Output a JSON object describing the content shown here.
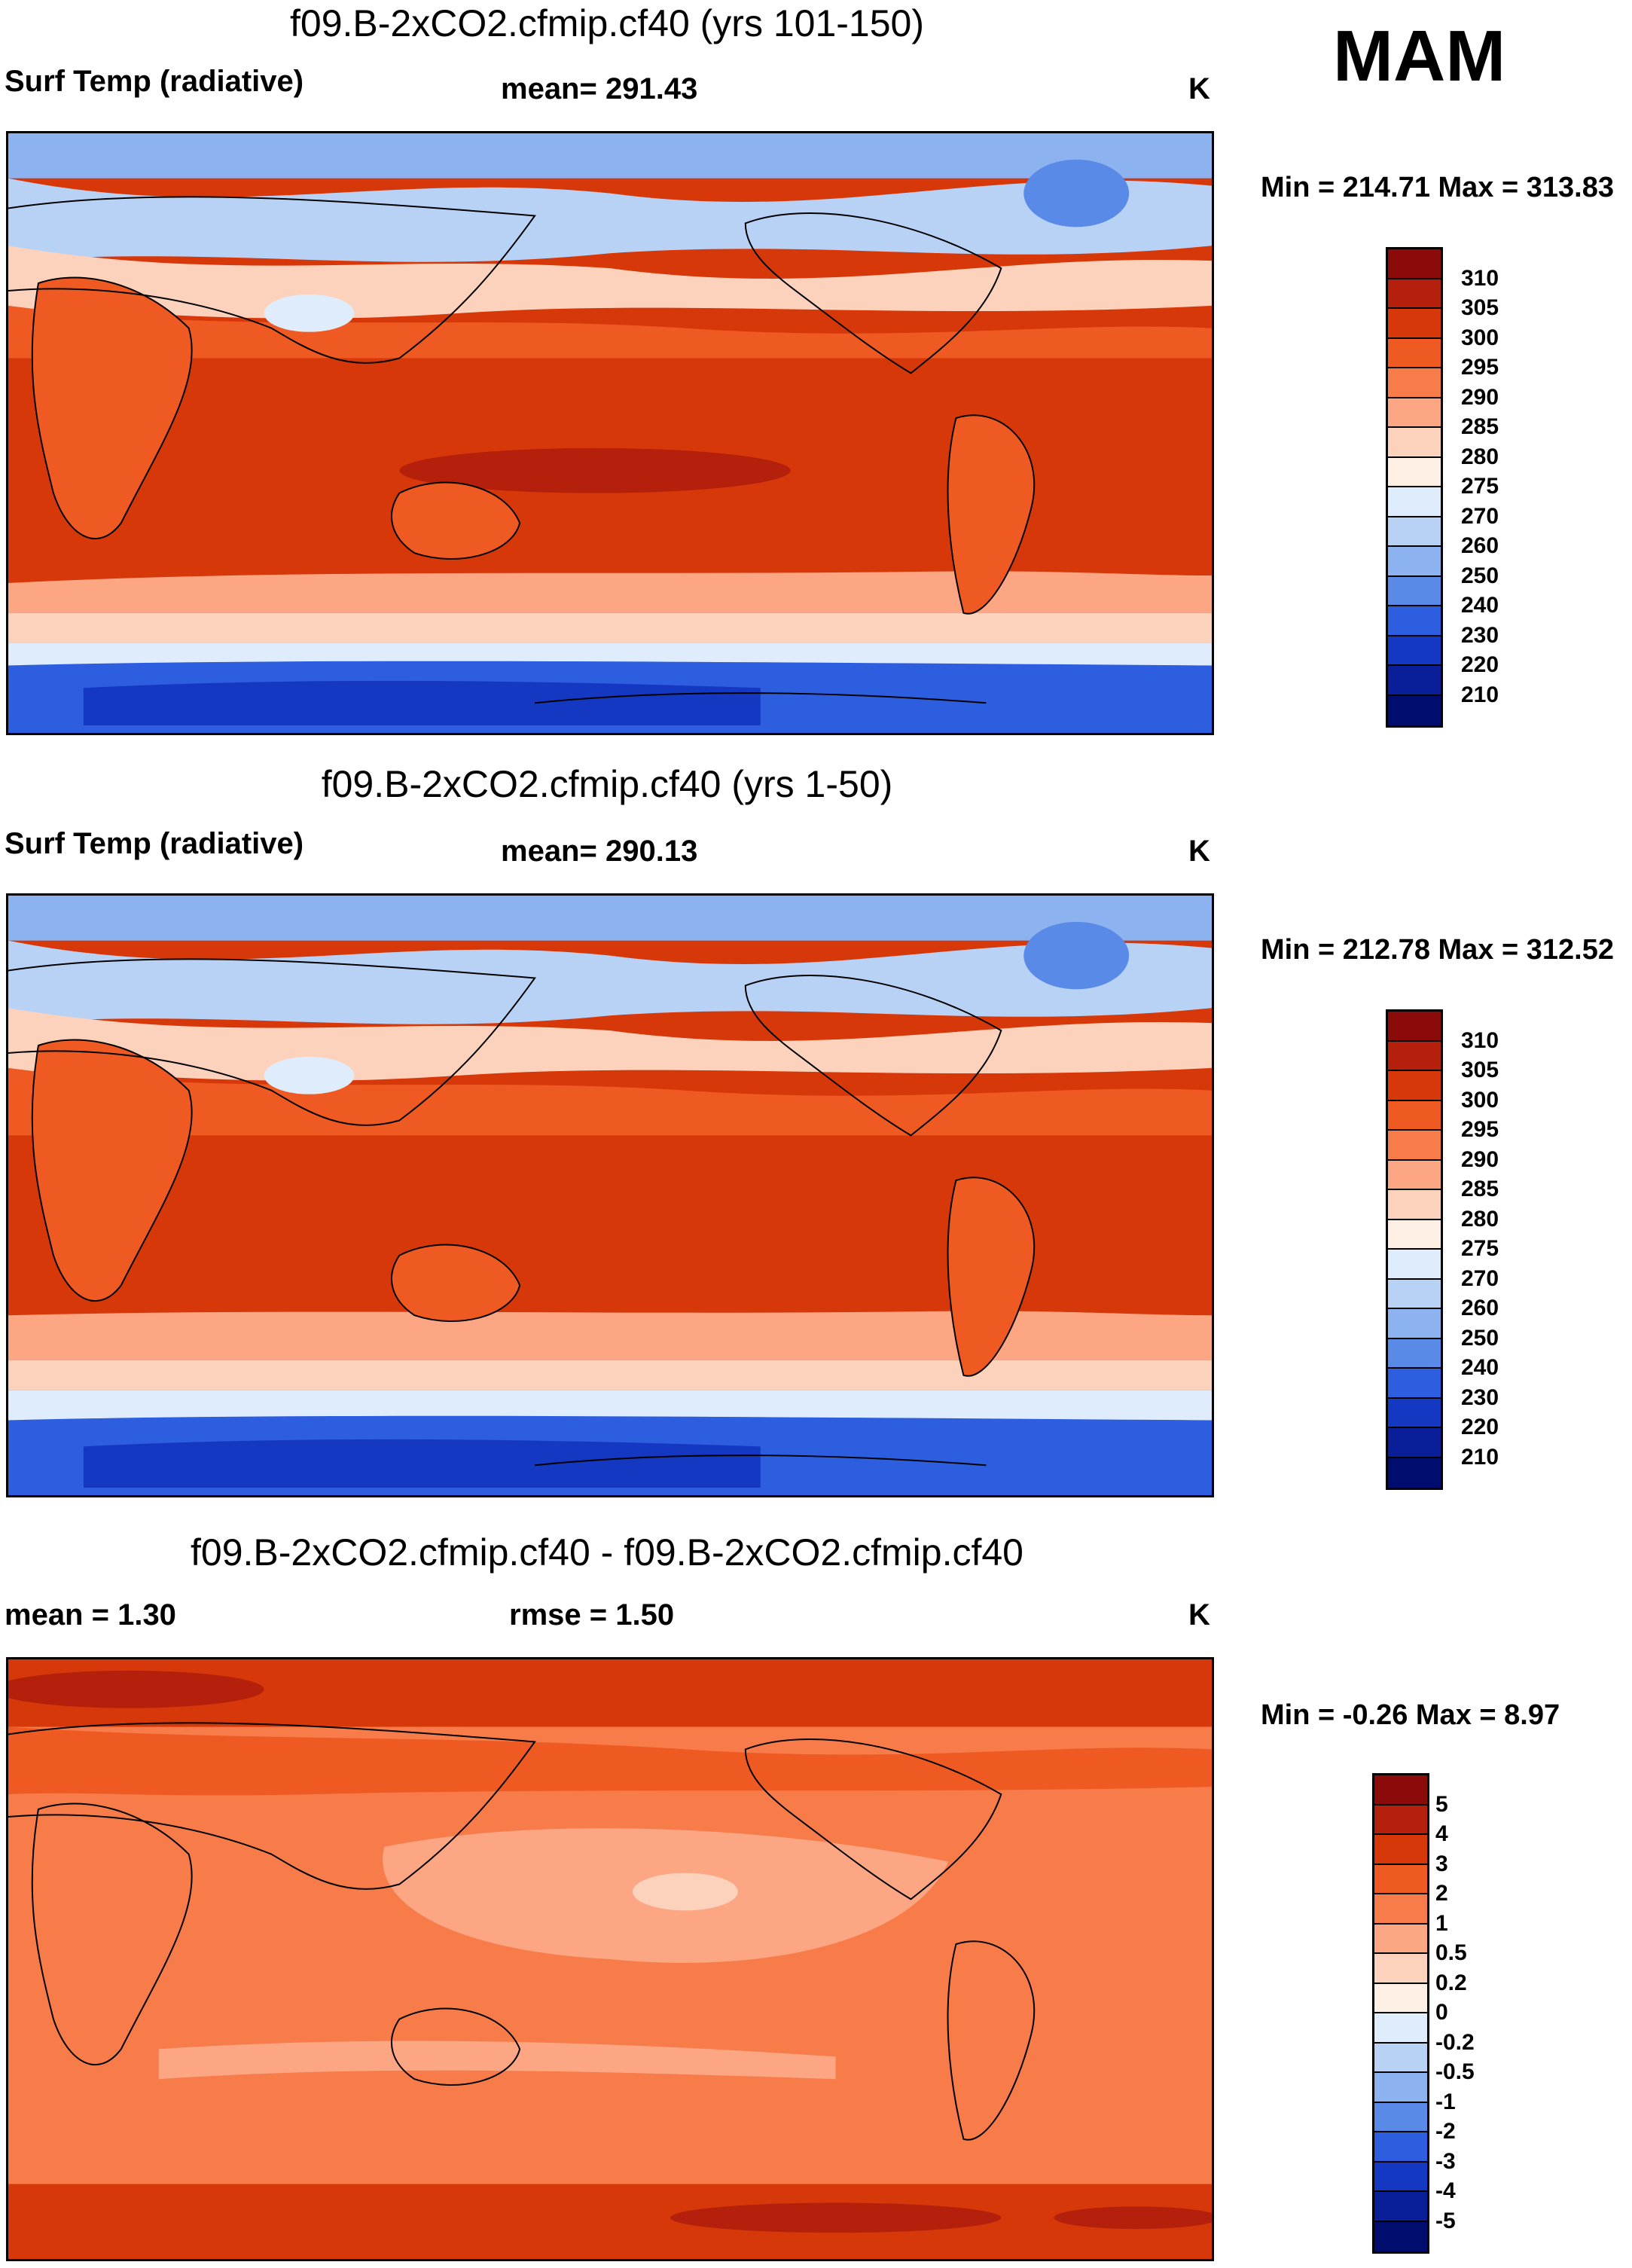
{
  "season": "MAM",
  "panels": [
    {
      "title": "f09.B-2xCO2.cfmip.cf40 (yrs 101-150)",
      "left_label": "Surf Temp (radiative)",
      "mid_label": "mean= 291.43",
      "units": "K",
      "minmax": "Min = 214.71 Max = 313.83",
      "colorbar": {
        "labels": [
          "310",
          "305",
          "300",
          "295",
          "290",
          "285",
          "280",
          "275",
          "270",
          "260",
          "250",
          "240",
          "230",
          "220",
          "210"
        ],
        "colors": [
          "#8b0a0a",
          "#b4200c",
          "#d7380a",
          "#ef5a22",
          "#f77c4a",
          "#fca684",
          "#fdd2bc",
          "#fff0e6",
          "#dfecfb",
          "#b8d2f6",
          "#8cb3f0",
          "#5a8ae8",
          "#2e5ee0",
          "#1538c2",
          "#0a1e9a",
          "#000d6e"
        ]
      }
    },
    {
      "title": "f09.B-2xCO2.cfmip.cf40 (yrs 1-50)",
      "left_label": "Surf Temp (radiative)",
      "mid_label": "mean= 290.13",
      "units": "K",
      "minmax": "Min = 212.78 Max = 312.52",
      "colorbar": {
        "labels": [
          "310",
          "305",
          "300",
          "295",
          "290",
          "285",
          "280",
          "275",
          "270",
          "260",
          "250",
          "240",
          "230",
          "220",
          "210"
        ],
        "colors": [
          "#8b0a0a",
          "#b4200c",
          "#d7380a",
          "#ef5a22",
          "#f77c4a",
          "#fca684",
          "#fdd2bc",
          "#fff0e6",
          "#dfecfb",
          "#b8d2f6",
          "#8cb3f0",
          "#5a8ae8",
          "#2e5ee0",
          "#1538c2",
          "#0a1e9a",
          "#000d6e"
        ]
      }
    },
    {
      "title": "f09.B-2xCO2.cfmip.cf40 - f09.B-2xCO2.cfmip.cf40",
      "left_label": "mean =   1.30",
      "mid_label": "rmse =   1.50",
      "units": "K",
      "minmax": "Min =  -0.26 Max =   8.97",
      "colorbar": {
        "labels": [
          "5",
          "4",
          "3",
          "2",
          "1",
          "0.5",
          "0.2",
          "0",
          "-0.2",
          "-0.5",
          "-1",
          "-2",
          "-3",
          "-4",
          "-5"
        ],
        "colors": [
          "#8b0a0a",
          "#b4200c",
          "#d7380a",
          "#ef5a22",
          "#f77c4a",
          "#fca684",
          "#fdd2bc",
          "#fff0e6",
          "#dfecfb",
          "#b8d2f6",
          "#8cb3f0",
          "#5a8ae8",
          "#2e5ee0",
          "#1538c2",
          "#0a1e9a",
          "#000d6e"
        ]
      }
    }
  ]
}
